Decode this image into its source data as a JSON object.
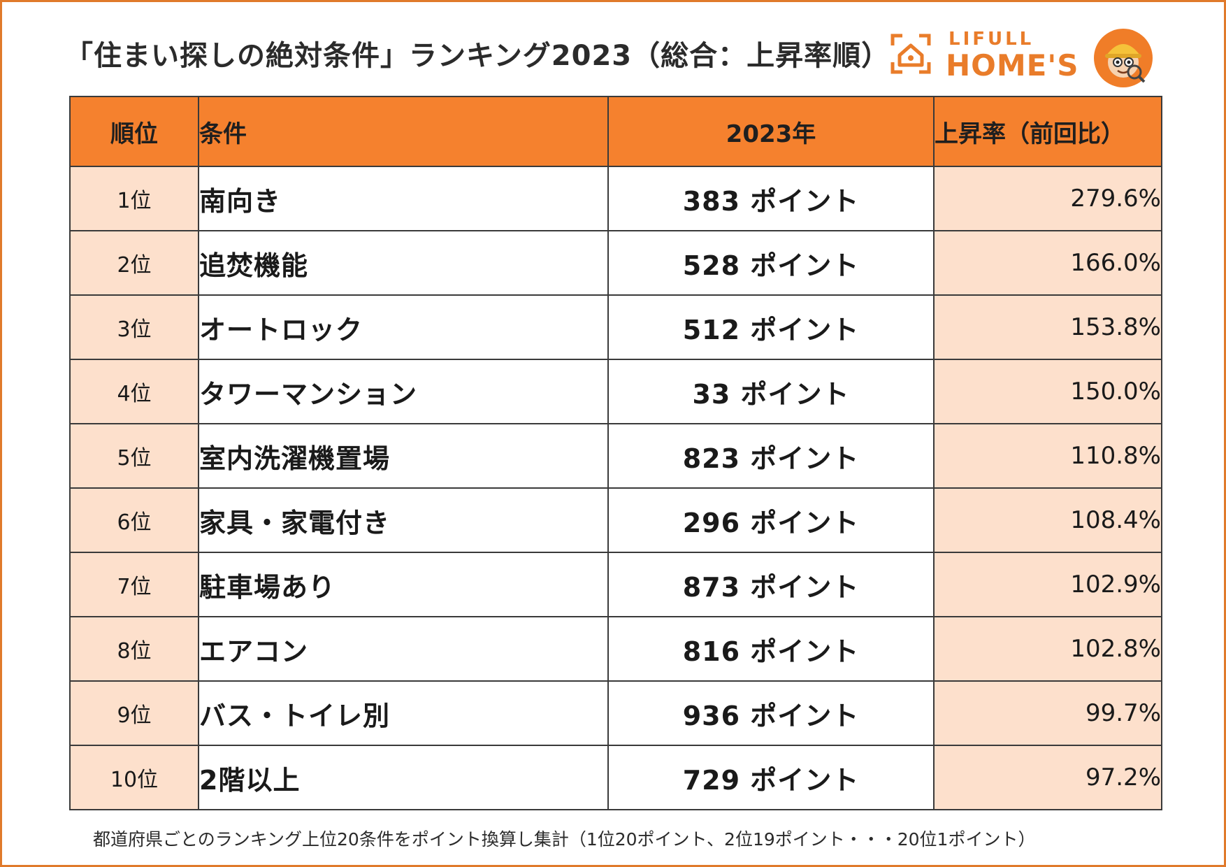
{
  "title": "「住まい探しの絶対条件」ランキング2023（総合：上昇率順）",
  "logo": {
    "line1": "LIFULL",
    "line2": "HOME'S"
  },
  "table": {
    "headers": {
      "rank": "順位",
      "condition": "条件",
      "points": "2023年",
      "rate": "上昇率（前回比）"
    },
    "rows": [
      {
        "rank": "1位",
        "condition": "南向き",
        "points": "383 ポイント",
        "rate": "279.6%"
      },
      {
        "rank": "2位",
        "condition": "追焚機能",
        "points": "528 ポイント",
        "rate": "166.0%"
      },
      {
        "rank": "3位",
        "condition": "オートロック",
        "points": "512 ポイント",
        "rate": "153.8%"
      },
      {
        "rank": "4位",
        "condition": "タワーマンション",
        "points": "33 ポイント",
        "rate": "150.0%"
      },
      {
        "rank": "5位",
        "condition": "室内洗濯機置場",
        "points": "823 ポイント",
        "rate": "110.8%"
      },
      {
        "rank": "6位",
        "condition": "家具・家電付き",
        "points": "296 ポイント",
        "rate": "108.4%"
      },
      {
        "rank": "7位",
        "condition": "駐車場あり",
        "points": "873 ポイント",
        "rate": "102.9%"
      },
      {
        "rank": "8位",
        "condition": "エアコン",
        "points": "816 ポイント",
        "rate": "102.8%"
      },
      {
        "rank": "9位",
        "condition": "バス・トイレ別",
        "points": "936 ポイント",
        "rate": "99.7%"
      },
      {
        "rank": "10位",
        "condition": "2階以上",
        "points": "729 ポイント",
        "rate": "97.2%"
      }
    ]
  },
  "footnote": "都道府県ごとのランキング上位20条件をポイント換算し集計（1位20ポイント、2位19ポイント・・・20位1ポイント）",
  "colors": {
    "accent": "#f5812e",
    "row_tint": "#fde0cc",
    "border": "#e07a2b"
  }
}
